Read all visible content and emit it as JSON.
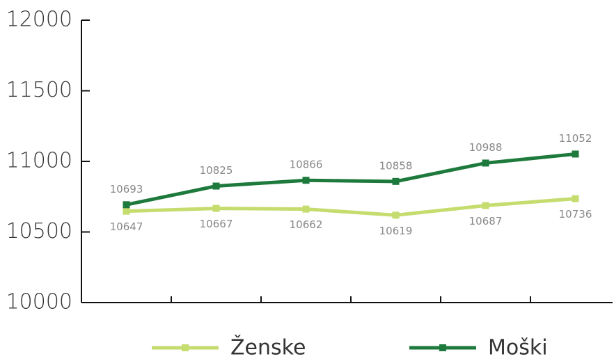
{
  "chart_data": {
    "type": "line",
    "categories": [
      null,
      null,
      null,
      null,
      null,
      null
    ],
    "series": [
      {
        "name": "Ženske",
        "color": "#c5dc6e",
        "values": [
          10647,
          10667,
          10662,
          10619,
          10687,
          10736
        ]
      },
      {
        "name": "Moški",
        "color": "#1e7a3c",
        "values": [
          10693,
          10825,
          10866,
          10858,
          10988,
          11052
        ]
      }
    ],
    "ylim": [
      10000,
      12000
    ],
    "yticks": [
      10000,
      10500,
      11000,
      11500,
      12000
    ]
  }
}
